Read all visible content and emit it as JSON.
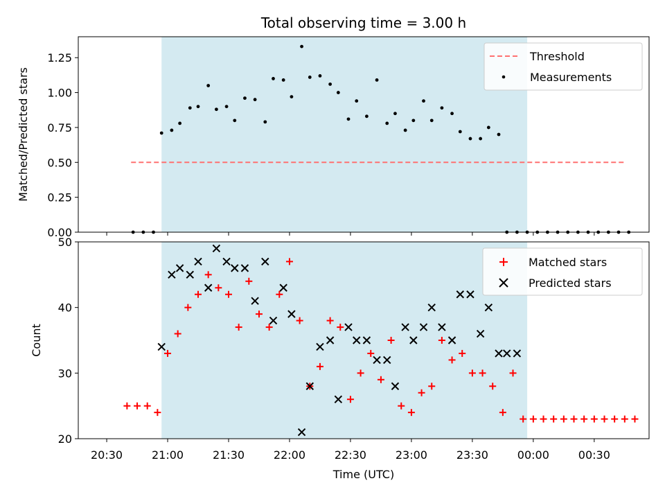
{
  "chart_data": {
    "type": "scatter",
    "title": "Total observing time = 3.00 h",
    "xlabel": "Time (UTC)",
    "x_ticks": [
      "20:30",
      "21:00",
      "21:30",
      "22:00",
      "22:30",
      "23:00",
      "23:30",
      "00:00",
      "00:30"
    ],
    "shaded_interval": [
      "20:57",
      "23:57"
    ],
    "colors": {
      "shade": "#d4eaf1",
      "threshold": "#ff7070",
      "matched": "#ff0000",
      "predicted": "#000000",
      "measurements": "#000000"
    },
    "panels": [
      {
        "ylabel": "Matched/Predicted stars",
        "ylim": [
          0.0,
          1.4
        ],
        "y_ticks": [
          "0.00",
          "0.25",
          "0.50",
          "0.75",
          "1.00",
          "1.25"
        ],
        "legend": [
          "Threshold",
          "Measurements"
        ],
        "legend_position": "top-right",
        "threshold": {
          "name": "Threshold",
          "value": 0.5,
          "x_start": "20:42",
          "x_end": "00:45"
        },
        "series": [
          {
            "name": "Measurements",
            "marker": "dot",
            "x": [
              "20:43",
              "20:48",
              "20:53",
              "20:57",
              "21:02",
              "21:06",
              "21:11",
              "21:15",
              "21:20",
              "21:24",
              "21:29",
              "21:33",
              "21:38",
              "21:43",
              "21:48",
              "21:52",
              "21:57",
              "22:01",
              "22:06",
              "22:10",
              "22:15",
              "22:20",
              "22:24",
              "22:29",
              "22:33",
              "22:38",
              "22:43",
              "22:48",
              "22:52",
              "22:57",
              "23:01",
              "23:06",
              "23:10",
              "23:15",
              "23:20",
              "23:24",
              "23:29",
              "23:34",
              "23:38",
              "23:43",
              "23:47",
              "23:52",
              "23:57",
              "24:02",
              "24:07",
              "24:12",
              "24:17",
              "24:22",
              "24:27",
              "24:32",
              "24:37",
              "24:42",
              "24:47"
            ],
            "y": [
              0.0,
              0.0,
              0.0,
              0.71,
              0.73,
              0.78,
              0.89,
              0.9,
              1.05,
              0.88,
              0.9,
              0.8,
              0.96,
              0.95,
              0.79,
              1.1,
              1.09,
              0.97,
              1.33,
              1.11,
              1.12,
              1.06,
              1.0,
              0.81,
              0.94,
              0.83,
              1.09,
              0.78,
              0.85,
              0.73,
              0.8,
              0.94,
              0.8,
              0.89,
              0.85,
              0.72,
              0.67,
              0.67,
              0.75,
              0.7,
              0.0,
              0.0,
              0.0,
              0.0,
              0.0,
              0.0,
              0.0,
              0.0,
              0.0,
              0.0,
              0.0,
              0.0,
              0.0
            ]
          }
        ]
      },
      {
        "ylabel": "Count",
        "ylim": [
          20,
          50
        ],
        "y_ticks": [
          "20",
          "30",
          "40",
          "50"
        ],
        "legend": [
          "Matched stars",
          "Predicted stars"
        ],
        "legend_position": "top-right",
        "series": [
          {
            "name": "Matched stars",
            "marker": "plus",
            "x": [
              "20:40",
              "20:45",
              "20:50",
              "20:55",
              "21:00",
              "21:05",
              "21:10",
              "21:15",
              "21:20",
              "21:25",
              "21:30",
              "21:35",
              "21:40",
              "21:45",
              "21:50",
              "21:55",
              "22:00",
              "22:05",
              "22:10",
              "22:15",
              "22:20",
              "22:25",
              "22:30",
              "22:35",
              "22:40",
              "22:45",
              "22:50",
              "22:55",
              "23:00",
              "23:05",
              "23:10",
              "23:15",
              "23:20",
              "23:25",
              "23:30",
              "23:35",
              "23:40",
              "23:45",
              "23:50",
              "23:55",
              "24:00",
              "24:05",
              "24:10",
              "24:15",
              "24:20",
              "24:25",
              "24:30",
              "24:35",
              "24:40",
              "24:45",
              "24:50"
            ],
            "y": [
              25,
              25,
              25,
              24,
              33,
              36,
              40,
              42,
              45,
              43,
              42,
              37,
              44,
              39,
              37,
              42,
              47,
              38,
              28,
              31,
              38,
              37,
              26,
              30,
              33,
              29,
              35,
              25,
              24,
              27,
              28,
              35,
              32,
              33,
              30,
              30,
              28,
              24,
              30,
              23,
              23,
              23,
              23,
              23,
              23,
              23,
              23,
              23,
              23,
              23,
              23
            ]
          },
          {
            "name": "Predicted stars",
            "marker": "x",
            "x": [
              "20:57",
              "21:02",
              "21:06",
              "21:11",
              "21:15",
              "21:20",
              "21:24",
              "21:29",
              "21:33",
              "21:38",
              "21:43",
              "21:48",
              "21:52",
              "21:57",
              "22:01",
              "22:06",
              "22:10",
              "22:15",
              "22:20",
              "22:24",
              "22:29",
              "22:33",
              "22:38",
              "22:43",
              "22:48",
              "22:52",
              "22:57",
              "23:01",
              "23:06",
              "23:10",
              "23:15",
              "23:20",
              "23:24",
              "23:29",
              "23:34",
              "23:38",
              "23:43",
              "23:47",
              "23:52"
            ],
            "y": [
              34,
              45,
              46,
              45,
              47,
              43,
              49,
              47,
              46,
              46,
              41,
              47,
              38,
              43,
              39,
              21,
              28,
              34,
              35,
              26,
              37,
              35,
              35,
              32,
              32,
              28,
              37,
              35,
              37,
              40,
              37,
              35,
              42,
              42,
              36,
              40,
              33,
              33,
              33
            ]
          }
        ]
      }
    ]
  }
}
